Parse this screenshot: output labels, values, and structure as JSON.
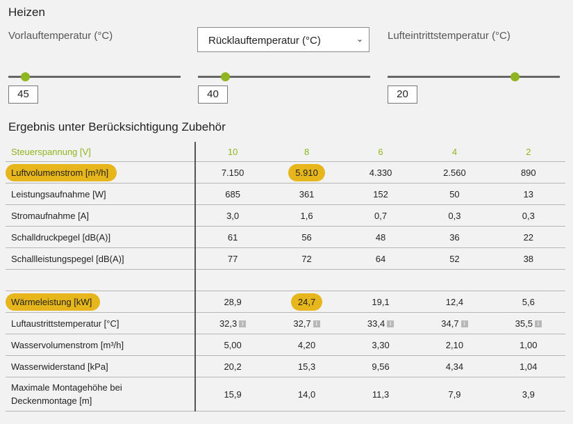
{
  "heading": "Heizen",
  "controls": {
    "flow_label": "Vorlauftemperatur (°C)",
    "return_select": "Rücklauftemperatur (°C)",
    "air_label": "Lufteintrittstemperatur (°C)",
    "flow_value": "45",
    "return_value": "40",
    "air_value": "20",
    "flow_slider_level": 0.1,
    "return_slider_level": 0.16,
    "air_slider_level": 0.74
  },
  "result_title": "Ergebnis unter Berücksichtigung Zubehör",
  "table": {
    "header": {
      "label": "Steuerspannung [V]",
      "values": [
        "10",
        "8",
        "6",
        "4",
        "2"
      ]
    },
    "rows": [
      {
        "label": "Luftvolumenstrom [m³/h]",
        "values": [
          "7.150",
          "5.910",
          "4.330",
          "2.560",
          "890"
        ],
        "highlight": true
      },
      {
        "label": "Leistungsaufnahme [W]",
        "values": [
          "685",
          "361",
          "152",
          "50",
          "13"
        ]
      },
      {
        "label": "Stromaufnahme [A]",
        "values": [
          "3,0",
          "1,6",
          "0,7",
          "0,3",
          "0,3"
        ]
      },
      {
        "label": "Schalldruckpegel [dB(A)]",
        "values": [
          "61",
          "56",
          "48",
          "36",
          "22"
        ]
      },
      {
        "label": "Schallleistungspegel [dB(A)]",
        "values": [
          "77",
          "72",
          "64",
          "52",
          "38"
        ]
      },
      {
        "label": "Wärmeleistung [kW]",
        "values": [
          "28,9",
          "24,7",
          "19,1",
          "12,4",
          "5,6"
        ],
        "highlight": true
      },
      {
        "label": "Luftaustrittstemperatur [°C]",
        "values": [
          "32,3",
          "32,7",
          "33,4",
          "34,7",
          "35,5"
        ],
        "info": true
      },
      {
        "label": "Wasservolumenstrom [m³/h]",
        "values": [
          "5,00",
          "4,20",
          "3,30",
          "2,10",
          "1,00"
        ]
      },
      {
        "label": "Wasserwiderstand [kPa]",
        "values": [
          "20,2",
          "15,3",
          "9,56",
          "4,34",
          "1,04"
        ]
      },
      {
        "label_line1": "Maximale Montagehöhe bei",
        "label_line2": "Deckenmontage [m]",
        "values": [
          "15,9",
          "14,0",
          "11,3",
          "7,9",
          "3,9"
        ]
      }
    ],
    "info_glyph": "i"
  },
  "colors": {
    "accent_green": "#8fb520",
    "highlight_yellow": "#e6b61c"
  }
}
